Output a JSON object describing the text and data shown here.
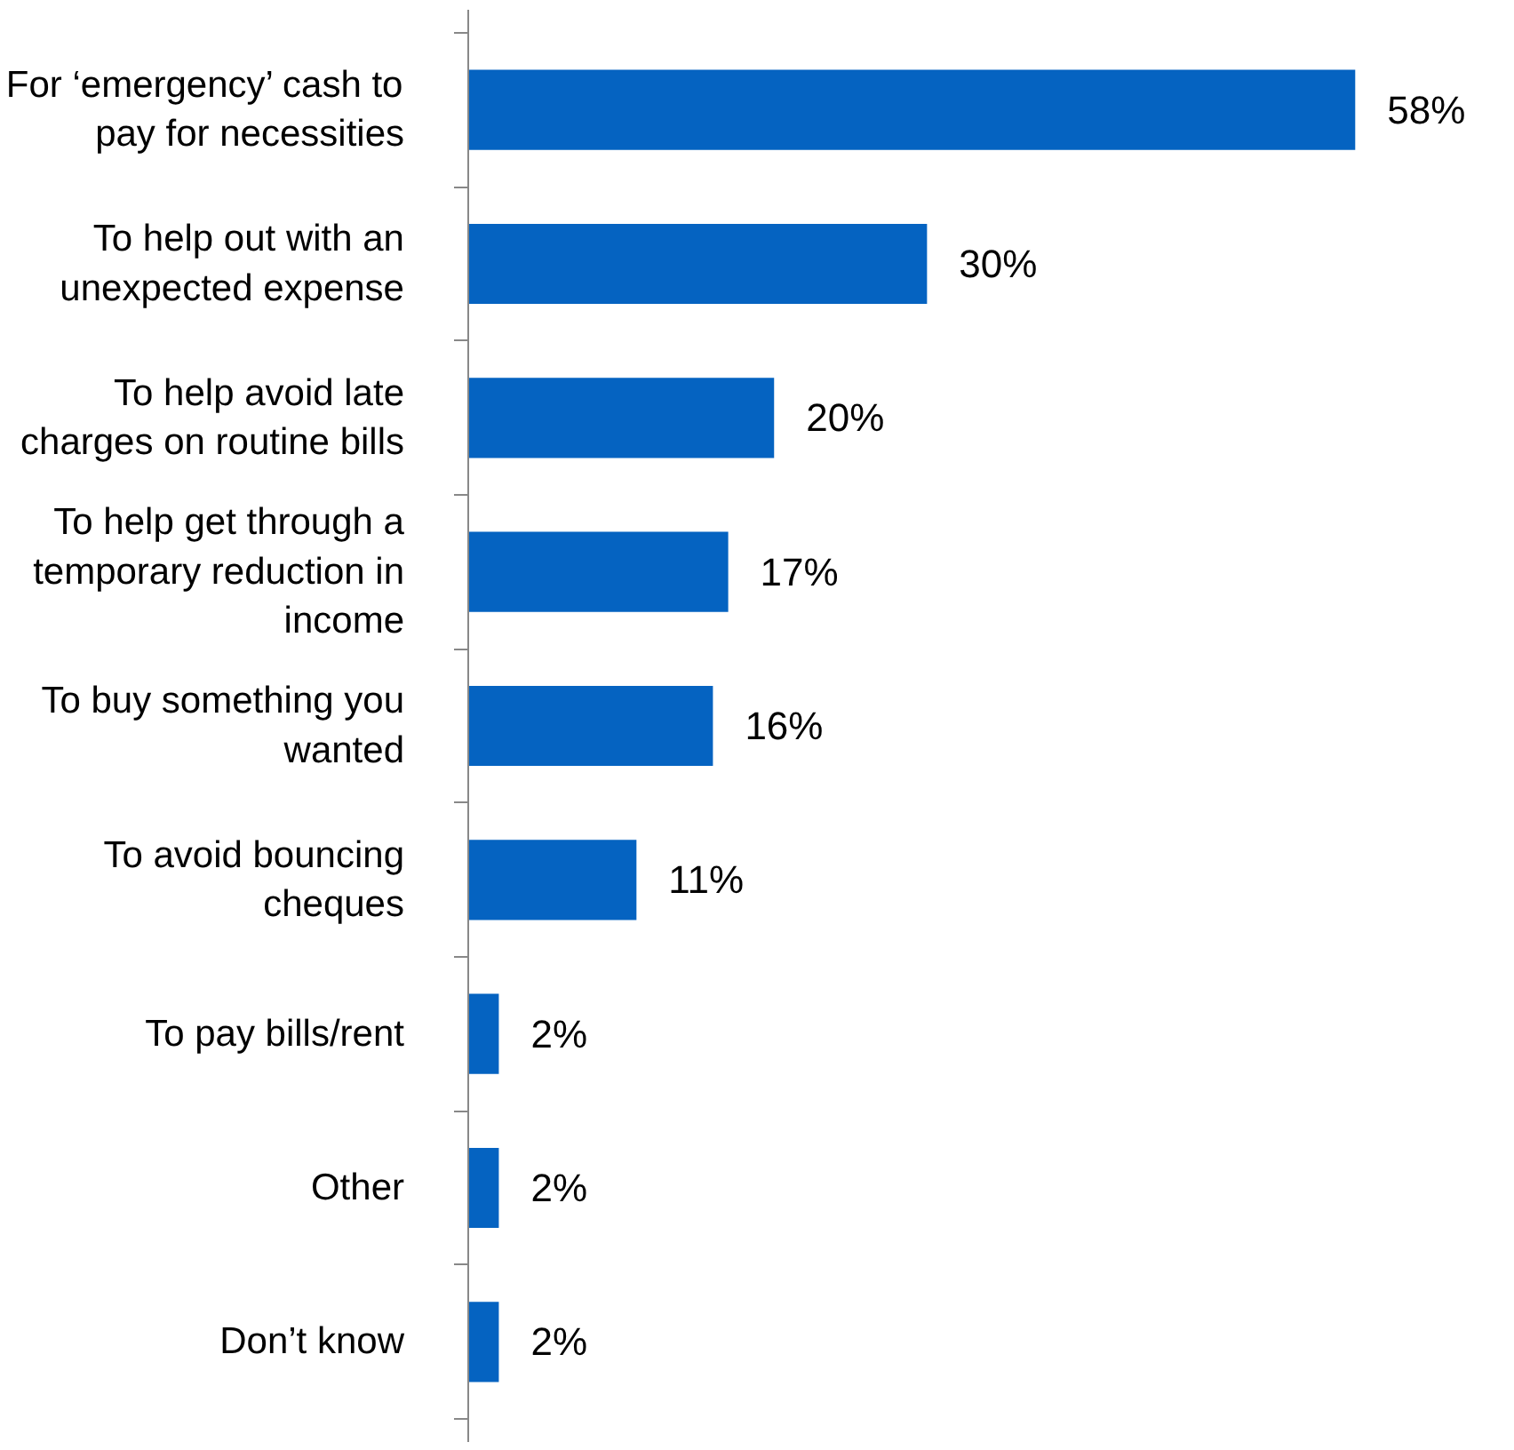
{
  "chart_data": {
    "type": "bar",
    "orientation": "horizontal",
    "categories": [
      "For ‘emergency’ cash to pay for necessities",
      "To help out with an unexpected expense",
      "To help avoid late charges on routine bills",
      "To help get through a temporary reduction in income",
      "To buy something you wanted",
      "To avoid bouncing cheques",
      "To pay bills/rent",
      "Other",
      "Don’t know"
    ],
    "values": [
      58,
      30,
      20,
      17,
      16,
      11,
      2,
      2,
      2
    ],
    "value_labels": [
      "58%",
      "30%",
      "20%",
      "17%",
      "16%",
      "11%",
      "2%",
      "2%",
      "2%"
    ],
    "color": "#0563c1"
  }
}
